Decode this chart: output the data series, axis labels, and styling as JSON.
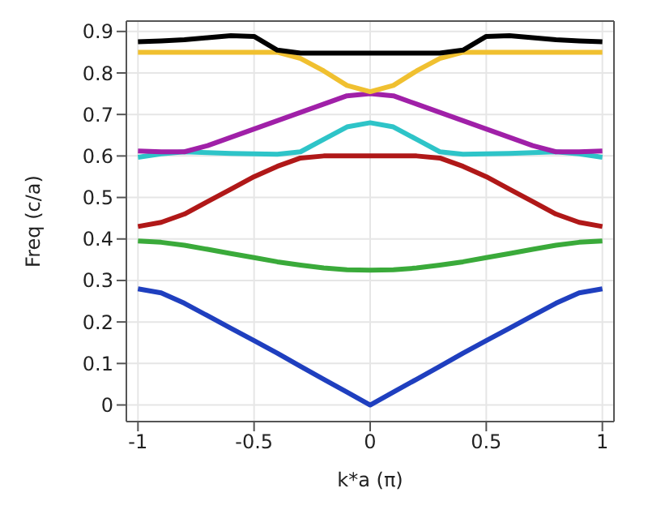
{
  "chart_data": {
    "type": "line",
    "xlabel": "k*a (π)",
    "ylabel": "Freq (c/a)",
    "x": [
      -1,
      -0.9,
      -0.8,
      -0.7,
      -0.6,
      -0.5,
      -0.4,
      -0.3,
      -0.2,
      -0.1,
      0,
      0.1,
      0.2,
      0.3,
      0.4,
      0.5,
      0.6,
      0.7,
      0.8,
      0.9,
      1
    ],
    "xlim": [
      -1.05,
      1.05
    ],
    "xticks": [
      -1,
      -0.5,
      0,
      0.5,
      1
    ],
    "ylim": [
      -0.04,
      0.925
    ],
    "yticks": [
      0,
      0.1,
      0.2,
      0.3,
      0.4,
      0.5,
      0.6,
      0.7,
      0.8,
      0.9
    ],
    "grid": true,
    "marker": "none",
    "line_style": "solid",
    "series": [
      {
        "color": "#1f3fbf",
        "values": [
          0.28,
          0.27,
          0.245,
          0.215,
          0.185,
          0.155,
          0.125,
          0.093,
          0.062,
          0.031,
          0,
          0.031,
          0.062,
          0.093,
          0.125,
          0.155,
          0.185,
          0.215,
          0.245,
          0.27,
          0.28
        ]
      },
      {
        "color": "#3aaa3a",
        "values": [
          0.395,
          0.392,
          0.385,
          0.375,
          0.365,
          0.355,
          0.345,
          0.337,
          0.33,
          0.326,
          0.325,
          0.326,
          0.33,
          0.337,
          0.345,
          0.355,
          0.365,
          0.375,
          0.385,
          0.392,
          0.395
        ]
      },
      {
        "color": "#b01818",
        "values": [
          0.43,
          0.44,
          0.46,
          0.49,
          0.52,
          0.55,
          0.575,
          0.595,
          0.6,
          0.6,
          0.6,
          0.6,
          0.6,
          0.595,
          0.575,
          0.55,
          0.52,
          0.49,
          0.46,
          0.44,
          0.43
        ]
      },
      {
        "color": "#2ec4c8",
        "values": [
          0.597,
          0.605,
          0.61,
          0.608,
          0.606,
          0.605,
          0.604,
          0.61,
          0.64,
          0.67,
          0.68,
          0.67,
          0.64,
          0.61,
          0.604,
          0.605,
          0.606,
          0.608,
          0.61,
          0.605,
          0.597
        ]
      },
      {
        "color": "#a020a8",
        "values": [
          0.612,
          0.61,
          0.61,
          0.625,
          0.645,
          0.665,
          0.685,
          0.705,
          0.725,
          0.745,
          0.75,
          0.745,
          0.725,
          0.705,
          0.685,
          0.665,
          0.645,
          0.625,
          0.61,
          0.61,
          0.612
        ]
      },
      {
        "color": "#f0c030",
        "values": [
          0.85,
          0.85,
          0.85,
          0.85,
          0.85,
          0.85,
          0.85,
          0.835,
          0.805,
          0.77,
          0.755,
          0.77,
          0.805,
          0.835,
          0.85,
          0.85,
          0.85,
          0.85,
          0.85,
          0.85,
          0.85
        ]
      },
      {
        "color": "#000000",
        "values": [
          0.875,
          0.877,
          0.88,
          0.885,
          0.89,
          0.888,
          0.855,
          0.848,
          0.848,
          0.848,
          0.848,
          0.848,
          0.848,
          0.848,
          0.855,
          0.888,
          0.89,
          0.885,
          0.88,
          0.877,
          0.875
        ]
      }
    ]
  }
}
